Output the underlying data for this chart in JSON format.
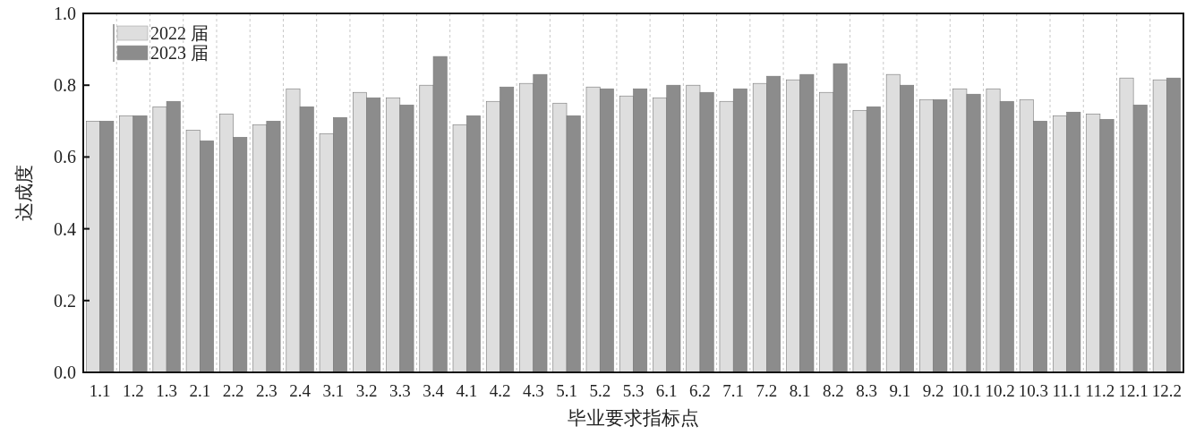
{
  "chart_data": {
    "type": "bar",
    "xlabel": "毕业要求指标点",
    "ylabel": "达成度",
    "categories": [
      "1.1",
      "1.2",
      "1.3",
      "2.1",
      "2.2",
      "2.3",
      "2.4",
      "3.1",
      "3.2",
      "3.3",
      "3.4",
      "4.1",
      "4.2",
      "4.3",
      "5.1",
      "5.2",
      "5.3",
      "6.1",
      "6.2",
      "7.1",
      "7.2",
      "8.1",
      "8.2",
      "8.3",
      "9.1",
      "9.2",
      "10.1",
      "10.2",
      "10.3",
      "11.1",
      "11.2",
      "12.1",
      "12.2"
    ],
    "series": [
      {
        "name": "2022 届",
        "color": "#dedede",
        "values": [
          0.7,
          0.715,
          0.74,
          0.675,
          0.72,
          0.69,
          0.79,
          0.665,
          0.78,
          0.765,
          0.8,
          0.69,
          0.755,
          0.805,
          0.75,
          0.795,
          0.77,
          0.765,
          0.8,
          0.755,
          0.805,
          0.815,
          0.78,
          0.73,
          0.83,
          0.76,
          0.79,
          0.79,
          0.76,
          0.715,
          0.72,
          0.82,
          0.815
        ]
      },
      {
        "name": "2023 届",
        "color": "#8c8c8c",
        "values": [
          0.7,
          0.715,
          0.755,
          0.645,
          0.655,
          0.7,
          0.74,
          0.71,
          0.765,
          0.745,
          0.88,
          0.715,
          0.795,
          0.83,
          0.715,
          0.79,
          0.79,
          0.8,
          0.78,
          0.79,
          0.825,
          0.83,
          0.86,
          0.74,
          0.8,
          0.76,
          0.775,
          0.755,
          0.7,
          0.725,
          0.705,
          0.745,
          0.82
        ]
      }
    ],
    "ylim": [
      0,
      1
    ],
    "yticks": [
      {
        "value": 0,
        "label": "0.0"
      },
      {
        "value": 0.2,
        "label": "0.2"
      },
      {
        "value": 0.4,
        "label": "0.4"
      },
      {
        "value": 0.6,
        "label": "0.6"
      },
      {
        "value": 0.8,
        "label": "0.8"
      },
      {
        "value": 1,
        "label": "1.0"
      }
    ],
    "grid": "x",
    "legend": "top left"
  }
}
